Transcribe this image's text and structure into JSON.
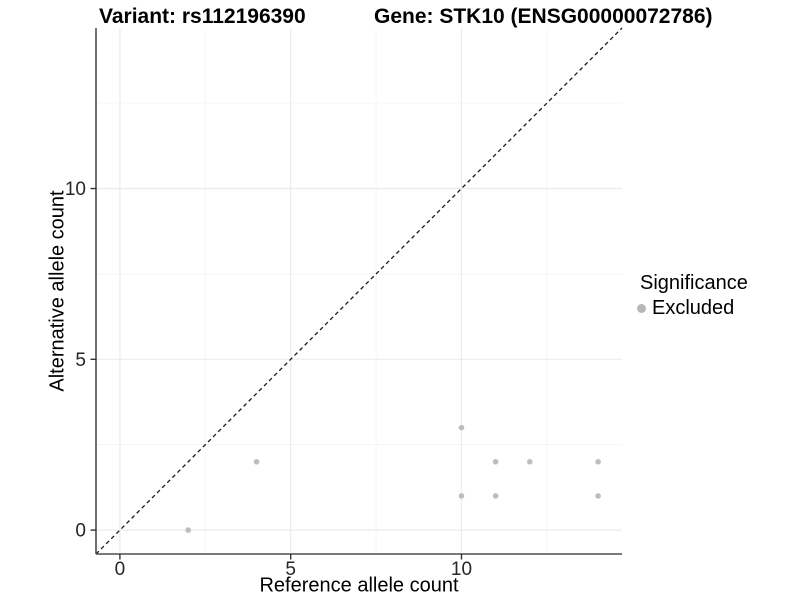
{
  "title": {
    "variant": "Variant: rs112196390",
    "gene": "Gene: STK10 (ENSG00000072786)"
  },
  "legend": {
    "title": "Significance",
    "position": "right",
    "items": [
      {
        "label": "Excluded",
        "color": "#b7b7b7"
      }
    ]
  },
  "colors": {
    "point": "#bdbdbd",
    "grid_major": "#ebebeb",
    "grid_minor": "#f4f4f4",
    "axis_line": "#4d4d4d",
    "tick_mark": "#333333",
    "tick_text": "#262626",
    "identity_line": "#1a1a1a",
    "background": "#ffffff"
  },
  "chart_data": {
    "type": "scatter",
    "title": "Variant: rs112196390 | Gene: STK10 (ENSG00000072786)",
    "xlabel": "Reference allele count",
    "ylabel": "Alternative allele count",
    "xlim": [
      -0.7,
      14.7
    ],
    "ylim": [
      -0.7,
      14.7
    ],
    "xticks": [
      0,
      5,
      10
    ],
    "yticks": [
      0,
      5,
      10
    ],
    "grid": {
      "major": [
        0,
        5,
        10
      ],
      "minor": [
        2.5,
        7.5,
        12.5
      ],
      "on": true
    },
    "legend_position": "right",
    "series": [
      {
        "name": "Excluded",
        "color": "#bdbdbd",
        "points": [
          [
            2,
            0
          ],
          [
            4,
            2
          ],
          [
            10,
            1
          ],
          [
            10,
            3
          ],
          [
            11,
            1
          ],
          [
            11,
            2
          ],
          [
            12,
            2
          ],
          [
            14,
            1
          ],
          [
            14,
            2
          ]
        ]
      }
    ],
    "reference_line": {
      "kind": "identity",
      "style": "dashed",
      "color": "#1a1a1a"
    }
  }
}
